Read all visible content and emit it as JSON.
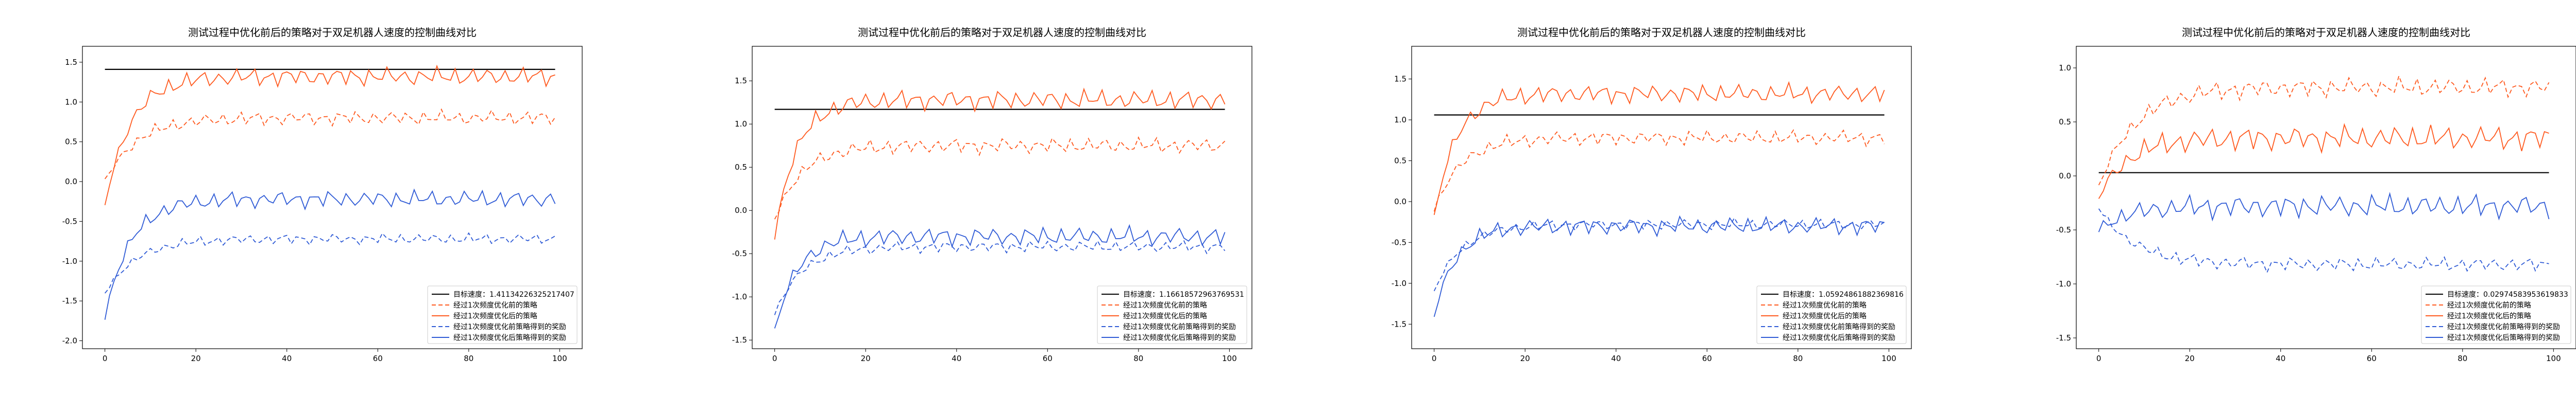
{
  "colors": {
    "target": "#000000",
    "before_solid": "#ff5a1f",
    "before_dashed": "#ff5a1f",
    "after_dashed": "#2f5bd6",
    "after_solid": "#2f5bd6"
  },
  "legend_labels": [
    "目标速度：",
    "经过1次频度优化前的策略",
    "经过1次频度优化后的策略",
    "经过1次频度优化前策略得到的奖励",
    "经过1次频度优化后策略得到的奖励"
  ],
  "chart_data": [
    {
      "type": "line",
      "title": "测试过程中优化前后的策略对于双足机器人速度的控制曲线对比",
      "target_value_label": "1.41134226325217407",
      "xlim": [
        0,
        100
      ],
      "ylim": [
        -2.1,
        1.7
      ],
      "xticks": [
        0,
        20,
        40,
        60,
        80,
        100
      ],
      "yticks": [
        -2.0,
        -1.5,
        -1.0,
        -0.5,
        0.0,
        0.5,
        1.0,
        1.5
      ],
      "target": 1.41,
      "base": {
        "target": 1.41,
        "before": 0.8,
        "after": 1.32,
        "before_r": -0.72,
        "after_r": -0.22
      },
      "start": {
        "before": 0.0,
        "after": -0.3,
        "before_r": -1.4,
        "after_r": -1.7
      },
      "tau": 7
    },
    {
      "type": "line",
      "title": "测试过程中优化前后的策略对于双足机器人速度的控制曲线对比",
      "target_value_label": "1.16618572963769531",
      "xlim": [
        0,
        100
      ],
      "ylim": [
        -1.6,
        1.9
      ],
      "xticks": [
        0,
        20,
        40,
        60,
        80,
        100
      ],
      "yticks": [
        -1.5,
        -1.0,
        -0.5,
        0.0,
        0.5,
        1.0,
        1.5
      ],
      "target": 1.17,
      "base": {
        "target": 1.17,
        "before": 0.75,
        "after": 1.28,
        "before_r": -0.42,
        "after_r": -0.3
      },
      "start": {
        "before": -0.1,
        "after": -0.3,
        "before_r": -1.2,
        "after_r": -1.4
      },
      "tau": 6
    },
    {
      "type": "line",
      "title": "测试过程中优化前后的策略对于双足机器人速度的控制曲线对比",
      "target_value_label": "1.05924861882369816",
      "xlim": [
        0,
        100
      ],
      "ylim": [
        -1.8,
        1.9
      ],
      "xticks": [
        0,
        20,
        40,
        60,
        80,
        100
      ],
      "yticks": [
        -1.5,
        -1.0,
        -0.5,
        0.0,
        0.5,
        1.0,
        1.5
      ],
      "target": 1.06,
      "base": {
        "target": 1.06,
        "before": 0.78,
        "after": 1.32,
        "before_r": -0.28,
        "after_r": -0.3
      },
      "start": {
        "before": -0.1,
        "after": -0.2,
        "before_r": -1.1,
        "after_r": -1.4
      },
      "tau": 6
    },
    {
      "type": "line",
      "title": "测试过程中优化前后的策略对于双足机器人速度的控制曲线对比",
      "target_value_label": "0.02974583953619833",
      "xlim": [
        0,
        100
      ],
      "ylim": [
        -1.6,
        1.2
      ],
      "xticks": [
        0,
        20,
        40,
        60,
        80,
        100
      ],
      "yticks": [
        -1.5,
        -1.0,
        -0.5,
        0.0,
        0.5,
        1.0
      ],
      "target": 0.03,
      "base": {
        "target": 0.03,
        "before": 0.82,
        "after": 0.35,
        "before_r": -0.82,
        "after_r": -0.28
      },
      "start": {
        "before": -0.1,
        "after": -0.2,
        "before_r": -0.3,
        "after_r": -0.5
      },
      "tau": 8
    }
  ]
}
